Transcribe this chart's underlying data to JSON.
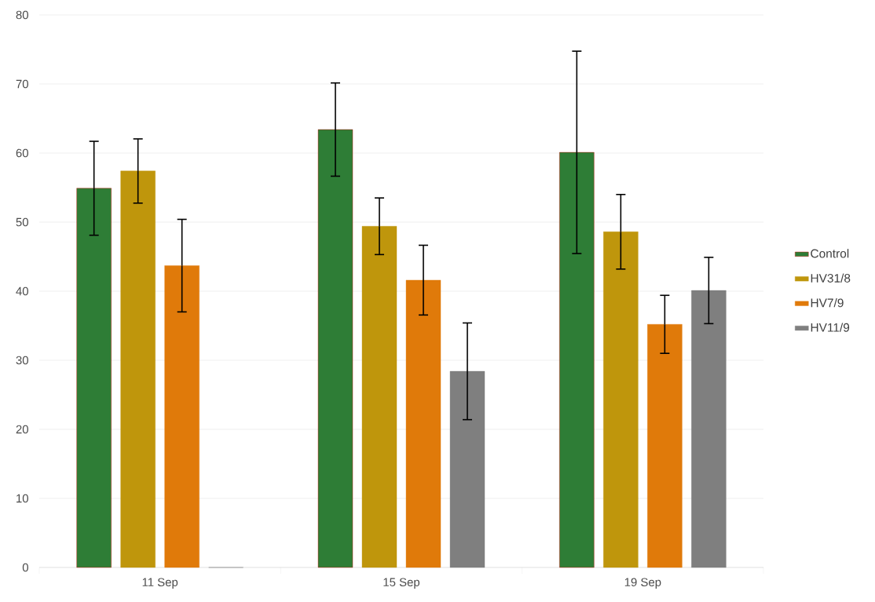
{
  "chart_data": {
    "type": "bar",
    "categories": [
      "11 Sep",
      "15 Sep",
      "19 Sep"
    ],
    "series": [
      {
        "name": "Control",
        "color": "#2e7d36",
        "values": [
          54.9,
          63.4,
          60.1
        ],
        "errors": [
          6.8,
          6.75,
          14.65
        ]
      },
      {
        "name": "HV31/8",
        "color": "#bf960c",
        "values": [
          57.4,
          49.4,
          48.6
        ],
        "errors": [
          4.65,
          4.1,
          5.4
        ]
      },
      {
        "name": "HV7/9",
        "color": "#e07a0a",
        "values": [
          43.7,
          41.6,
          35.2
        ],
        "errors": [
          6.7,
          5.05,
          4.2
        ]
      },
      {
        "name": "HV11/9",
        "color": "#7f7f7f",
        "values": [
          0,
          28.4,
          40.1
        ],
        "errors": [
          null,
          7.0,
          4.8
        ]
      }
    ],
    "ylim": [
      0,
      80
    ],
    "yticks": [
      0,
      10,
      20,
      30,
      40,
      50,
      60,
      70,
      80
    ],
    "grid": "y",
    "legend": "right"
  }
}
